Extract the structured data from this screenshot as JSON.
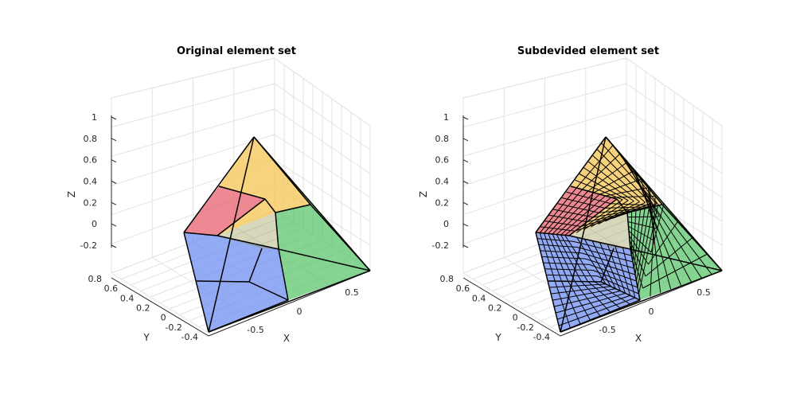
{
  "chart_data": [
    {
      "type": "3d-mesh",
      "title": "Original element set",
      "xlabel": "X",
      "ylabel": "Y",
      "zlabel": "Z",
      "xticks": [
        "-0.5",
        "0",
        "0.5"
      ],
      "yticks": [
        "-0.4",
        "-0.2",
        "0",
        "0.2",
        "0.4",
        "0.6",
        "0.8"
      ],
      "zticks": [
        "-0.2",
        "0",
        "0.2",
        "0.4",
        "0.6",
        "0.8",
        "1"
      ],
      "element_colors": {
        "red": "#e8606e",
        "yellow": "#f5c451",
        "green": "#5cc66c",
        "blue": "#6f8ff0"
      },
      "face_alpha": 0.75,
      "subdivided": false,
      "grid": true
    },
    {
      "type": "3d-mesh",
      "title": "Subdevided element set",
      "xlabel": "X",
      "ylabel": "Y",
      "zlabel": "Z",
      "xticks": [
        "-0.5",
        "0",
        "0.5"
      ],
      "yticks": [
        "-0.4",
        "-0.2",
        "0",
        "0.2",
        "0.4",
        "0.6",
        "0.8"
      ],
      "zticks": [
        "-0.2",
        "0",
        "0.2",
        "0.4",
        "0.6",
        "0.8",
        "1"
      ],
      "element_colors": {
        "red": "#e8606e",
        "yellow": "#f5c451",
        "green": "#5cc66c",
        "blue": "#6f8ff0"
      },
      "face_alpha": 0.75,
      "subdivided": true,
      "grid": true
    }
  ]
}
